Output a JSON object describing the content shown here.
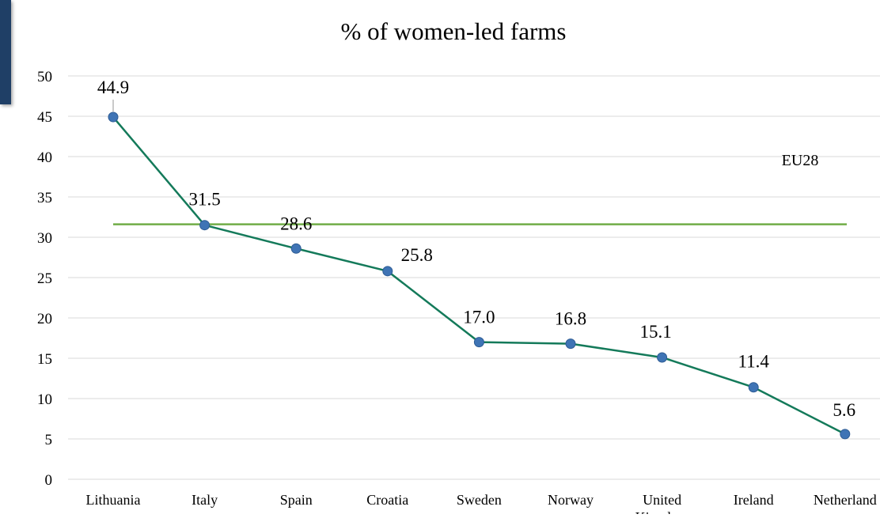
{
  "chart_data": {
    "type": "line",
    "title": "% of women-led farms",
    "categories": [
      "Lithuania",
      "Italy",
      "Spain",
      "Croatia",
      "Sweden",
      "Norway",
      "United Kingdom",
      "Ireland",
      "Netherland"
    ],
    "series": [
      {
        "values": [
          44.9,
          31.5,
          28.6,
          25.8,
          17.0,
          16.8,
          15.1,
          11.4,
          5.6
        ],
        "labels": [
          "44.9",
          "31.5",
          "28.6",
          "25.8",
          "17.0",
          "16.8",
          "15.1",
          "11.4",
          "5.6"
        ],
        "color": "#147a5a",
        "marker_color": "#3f74b5"
      }
    ],
    "reference_line": {
      "name": "EU28",
      "value": 31.6,
      "color": "#70ad47"
    },
    "ylim": [
      0,
      50
    ],
    "yticks": [
      0,
      5,
      10,
      15,
      20,
      25,
      30,
      35,
      40,
      45,
      50
    ],
    "ytick_labels": [
      "0",
      "5",
      "10",
      "15",
      "20",
      "25",
      "30",
      "35",
      "40",
      "45",
      "50"
    ],
    "grid": true,
    "xlabel": "",
    "ylabel": ""
  },
  "colors": {
    "grid": "#d9d9d9",
    "tab": "#1f3f66"
  }
}
